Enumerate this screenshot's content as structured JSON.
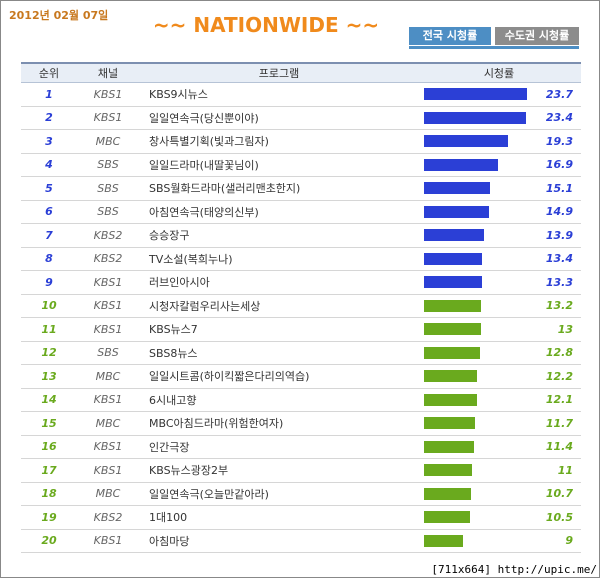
{
  "header": {
    "date": "2012년 02월 07일",
    "title": "~~ NATIONWIDE ~~",
    "tabs": [
      "전국 시청률",
      "수도권 시청률"
    ]
  },
  "table": {
    "columns": [
      "순위",
      "채널",
      "프로그램",
      "시청률"
    ],
    "rows": [
      {
        "rank": 1,
        "channel": "KBS1",
        "program": "KBS9시뉴스",
        "rating": 23.7,
        "color": "#2b3fd6"
      },
      {
        "rank": 2,
        "channel": "KBS1",
        "program": "일일연속극(당신뿐이야)",
        "rating": 23.4,
        "color": "#2b3fd6"
      },
      {
        "rank": 3,
        "channel": "MBC",
        "program": "창사특별기획(빛과그림자)",
        "rating": 19.3,
        "color": "#2b3fd6"
      },
      {
        "rank": 4,
        "channel": "SBS",
        "program": "일일드라마(내딸꽃님이)",
        "rating": 16.9,
        "color": "#2b3fd6"
      },
      {
        "rank": 5,
        "channel": "SBS",
        "program": "SBS월화드라마(샐러리맨초한지)",
        "rating": 15.1,
        "color": "#2b3fd6"
      },
      {
        "rank": 6,
        "channel": "SBS",
        "program": "아침연속극(태양의신부)",
        "rating": 14.9,
        "color": "#2b3fd6"
      },
      {
        "rank": 7,
        "channel": "KBS2",
        "program": "승승장구",
        "rating": 13.9,
        "color": "#2b3fd6"
      },
      {
        "rank": 8,
        "channel": "KBS2",
        "program": "TV소설(복희누나)",
        "rating": 13.4,
        "color": "#2b3fd6"
      },
      {
        "rank": 9,
        "channel": "KBS1",
        "program": "러브인아시아",
        "rating": 13.3,
        "color": "#2b3fd6"
      },
      {
        "rank": 10,
        "channel": "KBS1",
        "program": "시청자칼럼우리사는세상",
        "rating": 13.2,
        "color": "#6aaa1e"
      },
      {
        "rank": 11,
        "channel": "KBS1",
        "program": "KBS뉴스7",
        "rating": 13,
        "color": "#6aaa1e"
      },
      {
        "rank": 12,
        "channel": "SBS",
        "program": "SBS8뉴스",
        "rating": 12.8,
        "color": "#6aaa1e"
      },
      {
        "rank": 13,
        "channel": "MBC",
        "program": "일일시트콤(하이킥짧은다리의역습)",
        "rating": 12.2,
        "color": "#6aaa1e"
      },
      {
        "rank": 14,
        "channel": "KBS1",
        "program": "6시내고향",
        "rating": 12.1,
        "color": "#6aaa1e"
      },
      {
        "rank": 15,
        "channel": "MBC",
        "program": "MBC아침드라마(위험한여자)",
        "rating": 11.7,
        "color": "#6aaa1e"
      },
      {
        "rank": 16,
        "channel": "KBS1",
        "program": "인간극장",
        "rating": 11.4,
        "color": "#6aaa1e"
      },
      {
        "rank": 17,
        "channel": "KBS1",
        "program": "KBS뉴스광장2부",
        "rating": 11,
        "color": "#6aaa1e"
      },
      {
        "rank": 18,
        "channel": "MBC",
        "program": "일일연속극(오늘만같아라)",
        "rating": 10.7,
        "color": "#6aaa1e"
      },
      {
        "rank": 19,
        "channel": "KBS2",
        "program": "1대100",
        "rating": 10.5,
        "color": "#6aaa1e"
      },
      {
        "rank": 20,
        "channel": "KBS1",
        "program": "아침마당",
        "rating": 9,
        "color": "#6aaa1e"
      }
    ]
  },
  "watermark": "[711x664] http://upic.me/"
}
